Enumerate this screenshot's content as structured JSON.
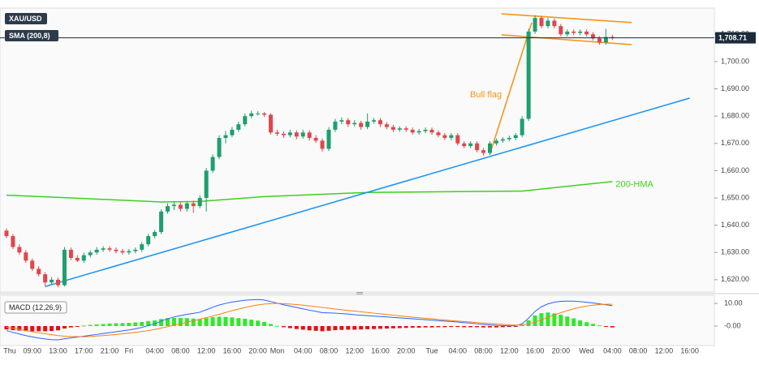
{
  "chart_data": [
    {
      "type": "candlestick",
      "symbol": "XAU/USD",
      "indicator_label": "SMA (200,8)",
      "up_color": "#1f9e6e",
      "down_color": "#e0464b",
      "ylim": [
        1615.5,
        1719.6
      ],
      "yticks": [
        {
          "value": 1620,
          "label": "1,620.00"
        },
        {
          "value": 1630,
          "label": "1,630.00"
        },
        {
          "value": 1640,
          "label": "1,640.00"
        },
        {
          "value": 1650,
          "label": "1,650.00"
        },
        {
          "value": 1660,
          "label": "1,660.00"
        },
        {
          "value": 1670,
          "label": "1,670.00"
        },
        {
          "value": 1680,
          "label": "1,680.00"
        },
        {
          "value": 1690,
          "label": "1,690.00"
        },
        {
          "value": 1700,
          "label": "1,700.00"
        },
        {
          "value": 1710,
          "label": "1,710.00"
        }
      ],
      "last_price": {
        "value": 1708.71,
        "label": "1,708.71"
      },
      "last_price_color": "#1c2b3a",
      "categories": [
        "Thu",
        null,
        null,
        null,
        "09:00",
        null,
        null,
        null,
        "13:00",
        null,
        null,
        null,
        "17:00",
        null,
        null,
        null,
        "21:00",
        null,
        null,
        "Fri",
        null,
        null,
        null,
        "04:00",
        null,
        null,
        null,
        "08:00",
        null,
        null,
        null,
        "12:00",
        null,
        null,
        null,
        "16:00",
        null,
        null,
        null,
        "20:00",
        null,
        null,
        "Mon",
        null,
        null,
        null,
        "04:00",
        null,
        null,
        null,
        "08:00",
        null,
        null,
        null,
        "12:00",
        null,
        null,
        null,
        "16:00",
        null,
        null,
        null,
        "20:00",
        null,
        null,
        null,
        "Tue",
        null,
        null,
        null,
        "04:00",
        null,
        null,
        null,
        "08:00",
        null,
        null,
        null,
        "12:00",
        null,
        null,
        null,
        "16:00",
        null,
        null,
        null,
        "20:00",
        null,
        null,
        null,
        "Wed",
        null,
        null,
        null,
        "04:00",
        null,
        null,
        null,
        "08:00",
        null,
        null,
        null,
        "12:00",
        null,
        null,
        null,
        "16:00"
      ],
      "ohlc": [
        [
          1638,
          1638.8,
          1635.2,
          1636
        ],
        [
          1636,
          1636.8,
          1631.2,
          1632
        ],
        [
          1632,
          1633,
          1629.2,
          1630
        ],
        [
          1630,
          1630.8,
          1626.2,
          1627
        ],
        [
          1627,
          1627.8,
          1623.2,
          1624
        ],
        [
          1624,
          1625,
          1621.2,
          1622
        ],
        [
          1622,
          1622.8,
          1617.5,
          1619
        ],
        [
          1619,
          1621,
          1618.2,
          1620
        ],
        [
          1620,
          1620.8,
          1617.2,
          1618
        ],
        [
          1618,
          1632,
          1617.5,
          1631
        ],
        [
          1631,
          1631.8,
          1627.2,
          1628
        ],
        [
          1628,
          1629,
          1626.5,
          1627
        ],
        [
          1627,
          1630,
          1626.2,
          1629
        ],
        [
          1629,
          1630.8,
          1628.2,
          1630
        ],
        [
          1630,
          1632,
          1629.2,
          1631
        ],
        [
          1631,
          1632.3,
          1630.2,
          1631.5
        ],
        [
          1631.5,
          1632.3,
          1630.2,
          1631
        ],
        [
          1631,
          1631.8,
          1629.7,
          1630.5
        ],
        [
          1630.5,
          1631.3,
          1629.2,
          1630
        ],
        [
          1630,
          1631.3,
          1629.2,
          1630.5
        ],
        [
          1630.5,
          1631.8,
          1629.7,
          1631
        ],
        [
          1631,
          1633.8,
          1630.2,
          1633
        ],
        [
          1633,
          1636.8,
          1632.2,
          1636
        ],
        [
          1636,
          1638.3,
          1635.2,
          1637.5
        ],
        [
          1637.5,
          1645.8,
          1636.7,
          1645
        ],
        [
          1645,
          1648,
          1644.2,
          1647
        ],
        [
          1647,
          1648.5,
          1645.5,
          1647.5
        ],
        [
          1647.5,
          1648.3,
          1645,
          1646
        ],
        [
          1646,
          1648.8,
          1645,
          1648
        ],
        [
          1648,
          1649,
          1644.5,
          1647
        ],
        [
          1647,
          1651,
          1646.2,
          1650
        ],
        [
          1650,
          1661,
          1645,
          1660
        ],
        [
          1660,
          1666,
          1659.2,
          1665
        ],
        [
          1665,
          1673,
          1664.2,
          1672
        ],
        [
          1672,
          1674.5,
          1670,
          1673
        ],
        [
          1673,
          1676,
          1672.2,
          1675
        ],
        [
          1675,
          1678,
          1674.2,
          1677
        ],
        [
          1677,
          1681,
          1676.2,
          1680
        ],
        [
          1680,
          1682,
          1679.2,
          1681
        ],
        [
          1681,
          1681.8,
          1680.2,
          1681
        ],
        [
          1681,
          1681.5,
          1679.7,
          1680.5
        ],
        [
          1680.5,
          1681,
          1673.2,
          1674
        ],
        [
          1674,
          1675,
          1672.7,
          1673.5
        ],
        [
          1673.5,
          1674.3,
          1672,
          1673
        ],
        [
          1673,
          1675,
          1672.2,
          1674
        ],
        [
          1674,
          1674.8,
          1671.5,
          1672.5
        ],
        [
          1672.5,
          1675,
          1671.7,
          1674
        ],
        [
          1674,
          1674.8,
          1671,
          1672
        ],
        [
          1672,
          1673,
          1670.2,
          1671
        ],
        [
          1671,
          1671.8,
          1667,
          1668
        ],
        [
          1668,
          1676,
          1667.2,
          1675
        ],
        [
          1675,
          1679,
          1674.2,
          1678
        ],
        [
          1678,
          1679.5,
          1677,
          1678.5
        ],
        [
          1678.5,
          1679.3,
          1676,
          1677
        ],
        [
          1677,
          1678.5,
          1676.2,
          1677.5
        ],
        [
          1677.5,
          1678.3,
          1675,
          1676
        ],
        [
          1676,
          1681,
          1675.2,
          1678
        ],
        [
          1678,
          1679.3,
          1677.2,
          1678.5
        ],
        [
          1678.5,
          1679.3,
          1676,
          1677
        ],
        [
          1677,
          1677.8,
          1675.2,
          1676
        ],
        [
          1676,
          1676.8,
          1674.2,
          1675
        ],
        [
          1675,
          1676.3,
          1674.2,
          1675.5
        ],
        [
          1675.5,
          1676.3,
          1674.2,
          1675
        ],
        [
          1675,
          1675.8,
          1673.2,
          1674
        ],
        [
          1674,
          1675.3,
          1673.2,
          1674.5
        ],
        [
          1674.5,
          1675.8,
          1673.7,
          1675
        ],
        [
          1675,
          1675.8,
          1673.2,
          1674
        ],
        [
          1674,
          1674.8,
          1672.2,
          1673
        ],
        [
          1673,
          1673.8,
          1671.2,
          1672
        ],
        [
          1672,
          1673.8,
          1671.2,
          1673
        ],
        [
          1673,
          1673.8,
          1669.2,
          1670
        ],
        [
          1670,
          1670.8,
          1668.2,
          1669
        ],
        [
          1669,
          1670.8,
          1668.2,
          1670
        ],
        [
          1670,
          1670.8,
          1666.7,
          1667.5
        ],
        [
          1667.5,
          1668.3,
          1665.5,
          1666.5
        ],
        [
          1666.5,
          1670.8,
          1665.7,
          1670
        ],
        [
          1670,
          1671.8,
          1669.2,
          1671
        ],
        [
          1671,
          1672.3,
          1670.2,
          1671.5
        ],
        [
          1671.5,
          1672.8,
          1670.7,
          1672
        ],
        [
          1672,
          1673.8,
          1671.2,
          1673
        ],
        [
          1673,
          1680,
          1672.2,
          1679
        ],
        [
          1679,
          1712,
          1678.2,
          1711
        ],
        [
          1711,
          1717,
          1710.2,
          1716
        ],
        [
          1716,
          1716.8,
          1712.2,
          1713
        ],
        [
          1713,
          1716,
          1712.2,
          1715
        ],
        [
          1715,
          1715.8,
          1712.2,
          1713
        ],
        [
          1713,
          1713.8,
          1709.2,
          1710
        ],
        [
          1710,
          1711.8,
          1709.2,
          1711
        ],
        [
          1711,
          1711.8,
          1709.7,
          1710.5
        ],
        [
          1710.5,
          1711.8,
          1709.7,
          1711
        ],
        [
          1711,
          1711.8,
          1709.2,
          1710
        ],
        [
          1710,
          1710.8,
          1707.7,
          1708.5
        ],
        [
          1708.5,
          1709.3,
          1706.2,
          1707
        ],
        [
          1707,
          1712,
          1706.2,
          1709
        ],
        [
          1709,
          1709.8,
          1707.9,
          1708.71
        ],
        null,
        null,
        null,
        null,
        null,
        null,
        null,
        null,
        null,
        null,
        null,
        null
      ],
      "hma": {
        "name": "200-HMA",
        "color": "#3fcf1f",
        "x": [
          0,
          10,
          24,
          30,
          40,
          56,
          70,
          80,
          86,
          94
        ],
        "values": [
          1651,
          1650,
          1648.5,
          1648.7,
          1650.5,
          1652,
          1652.3,
          1652.5,
          1654,
          1656
        ]
      },
      "lines": [
        {
          "color": "#2196f3",
          "points": [
            [
              6,
              1617.5
            ],
            [
              106,
              1686.6
            ]
          ]
        },
        {
          "color": "#f7941d",
          "points": [
            [
              75,
              1666.1
            ],
            [
              81.5,
              1714.3
            ]
          ]
        },
        {
          "color": "#f7941d",
          "points": [
            [
              76.8,
              1717.5
            ],
            [
              97,
              1714.3
            ]
          ]
        },
        {
          "color": "#f7941d",
          "points": [
            [
              76.8,
              1709.8
            ],
            [
              97,
              1706.2
            ]
          ]
        }
      ],
      "annotation": {
        "text": "Bull flag",
        "color": "#f7941d"
      }
    },
    {
      "type": "macd",
      "title": "MACD (12,26,9)",
      "ylim": [
        -8.6,
        13.6
      ],
      "yticks": [
        {
          "value": 10,
          "label": "10.00"
        },
        {
          "value": 0,
          "label": "-0.00"
        }
      ],
      "series": [
        {
          "color": "#2962ff",
          "values": [
            -2,
            -2.8,
            -3.5,
            -4.2,
            -4.8,
            -5.3,
            -5.7,
            -6,
            -6.1,
            -5.6,
            -5.2,
            -4.9,
            -4.5,
            -4.1,
            -3.7,
            -3.3,
            -2.9,
            -2.5,
            -2.1,
            -1.7,
            -1.2,
            -0.6,
            0.2,
            1,
            2.2,
            3.2,
            4,
            4.6,
            5.2,
            5.6,
            6.1,
            7.2,
            8.3,
            9.3,
            10,
            10.6,
            11,
            11.4,
            11.6,
            11.7,
            11.5,
            10.8,
            10.1,
            9.4,
            8.8,
            8.2,
            7.6,
            7,
            6.5,
            5.9,
            5.8,
            5.7,
            5.5,
            5.3,
            5,
            4.8,
            4.6,
            4.4,
            4.2,
            4,
            3.8,
            3.6,
            3.4,
            3.2,
            3,
            2.8,
            2.6,
            2.4,
            2.2,
            2,
            1.8,
            1.5,
            1.3,
            1,
            0.7,
            0.5,
            0.3,
            0.2,
            0.1,
            0.2,
            1,
            3.5,
            6.5,
            8.5,
            9.8,
            10.5,
            10.9,
            11,
            11,
            10.8,
            10.5,
            10.2,
            9.8,
            9.4,
            9,
            null,
            null,
            null,
            null,
            null,
            null,
            null,
            null,
            null,
            null,
            null,
            null
          ]
        },
        {
          "color": "#ff7f0e",
          "values": [
            -0.5,
            -1,
            -1.5,
            -2,
            -2.5,
            -3,
            -3.4,
            -3.8,
            -4.2,
            -4.5,
            -4.6,
            -4.7,
            -4.7,
            -4.6,
            -4.4,
            -4.2,
            -4,
            -3.7,
            -3.4,
            -3.1,
            -2.8,
            -2.4,
            -2,
            -1.5,
            -0.9,
            -0.3,
            0.4,
            1,
            1.7,
            2.3,
            3,
            3.7,
            4.4,
            5.2,
            6,
            6.8,
            7.5,
            8.2,
            8.8,
            9.3,
            9.7,
            9.9,
            10,
            9.9,
            9.7,
            9.5,
            9.2,
            8.9,
            8.6,
            8.2,
            7.9,
            7.5,
            7.2,
            6.9,
            6.6,
            6.3,
            6,
            5.7,
            5.4,
            5.1,
            4.8,
            4.5,
            4.2,
            3.9,
            3.7,
            3.4,
            3.2,
            2.9,
            2.7,
            2.4,
            2.2,
            2,
            1.8,
            1.5,
            1.3,
            1.1,
            0.9,
            0.7,
            0.5,
            0.4,
            0.5,
            1,
            1.8,
            2.8,
            3.8,
            4.9,
            5.9,
            6.8,
            7.6,
            8.3,
            8.8,
            9.2,
            9.5,
            9.6,
            9.6,
            null,
            null,
            null,
            null,
            null,
            null,
            null,
            null,
            null,
            null,
            null,
            null
          ]
        }
      ],
      "histogram": {
        "up_color": "#2ee82e",
        "down_color": "#e01010",
        "values": [
          -1.5,
          -1.8,
          -2,
          -2.2,
          -2.3,
          -2.3,
          -2.3,
          -2.2,
          -1.9,
          -1.1,
          -0.6,
          -0.2,
          0.2,
          0.5,
          0.7,
          0.9,
          1.1,
          1.2,
          1.3,
          1.4,
          1.6,
          1.8,
          2.2,
          2.5,
          3.1,
          3.5,
          3.6,
          3.6,
          3.5,
          3.3,
          3.1,
          3.5,
          3.9,
          4.1,
          4,
          3.8,
          3.5,
          3.2,
          2.8,
          2.4,
          1.8,
          0.9,
          0.1,
          -0.5,
          -0.9,
          -1.3,
          -1.6,
          -1.9,
          -2.1,
          -2.3,
          -2.1,
          -1.8,
          -1.7,
          -1.6,
          -1.6,
          -1.5,
          -1.4,
          -1.3,
          -1.2,
          -1.1,
          -1,
          -0.9,
          -0.8,
          -0.7,
          -0.7,
          -0.6,
          -0.6,
          -0.5,
          -0.5,
          -0.4,
          -0.4,
          -0.5,
          -0.5,
          -0.5,
          -0.6,
          -0.6,
          -0.6,
          -0.5,
          -0.4,
          -0.2,
          0.5,
          2.5,
          4.7,
          5.7,
          6,
          5.6,
          5,
          4.2,
          3.4,
          2.5,
          1.7,
          1,
          0.3,
          -0.2,
          -0.6,
          null,
          null,
          null,
          null,
          null,
          null,
          null,
          null,
          null,
          null,
          null,
          null
        ]
      }
    }
  ]
}
